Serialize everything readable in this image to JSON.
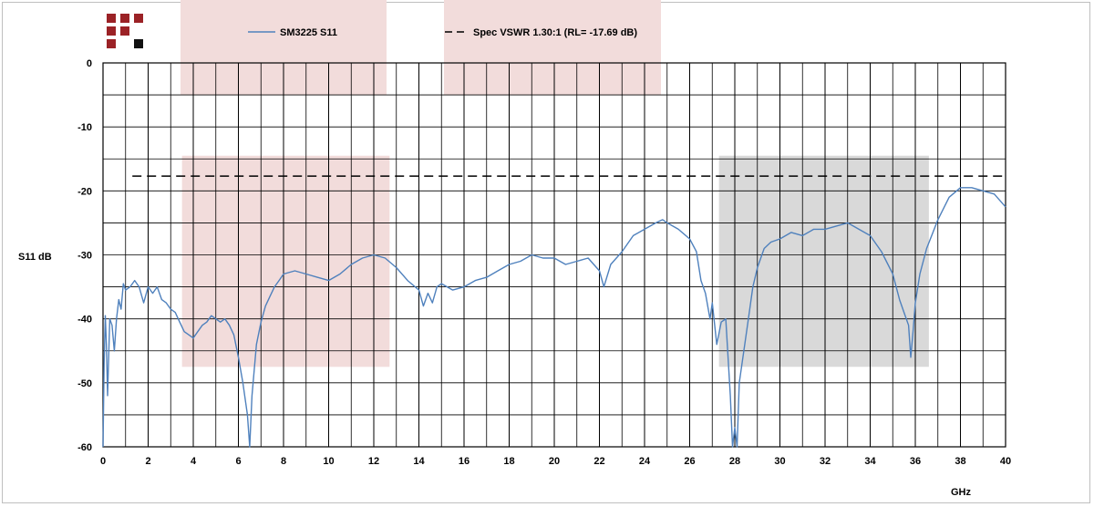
{
  "logo": {
    "name": "brand-logo",
    "colors": {
      "red": "#9b2226",
      "black": "#111111"
    }
  },
  "chart_data": {
    "type": "line",
    "xlabel": "GHz",
    "ylabel": "S11 dB",
    "xlim": [
      0,
      40
    ],
    "ylim": [
      -60,
      0
    ],
    "x_ticks": [
      0,
      2,
      4,
      6,
      8,
      10,
      12,
      14,
      16,
      18,
      20,
      22,
      24,
      26,
      28,
      30,
      32,
      34,
      36,
      38,
      40
    ],
    "y_ticks": [
      0,
      -10,
      -20,
      -30,
      -40,
      -50,
      -60
    ],
    "x_minor_step": 1,
    "y_minor_step": 5,
    "grid": true,
    "legend_position": "top",
    "series": [
      {
        "name": "SM3225 S11",
        "color": "#4f81bd",
        "style": "solid",
        "x": [
          0.0,
          0.05,
          0.1,
          0.15,
          0.2,
          0.3,
          0.4,
          0.5,
          0.6,
          0.7,
          0.8,
          0.9,
          1.0,
          1.2,
          1.4,
          1.6,
          1.8,
          2.0,
          2.2,
          2.4,
          2.6,
          2.8,
          3.0,
          3.2,
          3.4,
          3.6,
          3.8,
          4.0,
          4.2,
          4.4,
          4.6,
          4.8,
          5.0,
          5.2,
          5.4,
          5.6,
          5.8,
          6.0,
          6.2,
          6.4,
          6.5,
          6.6,
          6.8,
          7.0,
          7.2,
          7.4,
          7.6,
          7.8,
          8.0,
          8.5,
          9.0,
          9.5,
          10.0,
          10.5,
          11.0,
          11.5,
          12.0,
          12.5,
          13.0,
          13.5,
          14.0,
          14.2,
          14.4,
          14.6,
          14.8,
          15.0,
          15.5,
          16.0,
          16.5,
          17.0,
          17.5,
          18.0,
          18.5,
          19.0,
          19.5,
          20.0,
          20.5,
          21.0,
          21.5,
          22.0,
          22.2,
          22.5,
          23.0,
          23.5,
          24.0,
          24.5,
          24.8,
          25.0,
          25.5,
          26.0,
          26.3,
          26.5,
          26.7,
          26.9,
          27.0,
          27.2,
          27.4,
          27.6,
          27.8,
          27.9,
          28.0,
          28.1,
          28.2,
          28.4,
          28.6,
          28.8,
          29.0,
          29.3,
          29.6,
          30.0,
          30.5,
          31.0,
          31.5,
          32.0,
          32.5,
          33.0,
          33.5,
          34.0,
          34.5,
          35.0,
          35.3,
          35.5,
          35.7,
          35.8,
          35.9,
          36.0,
          36.2,
          36.5,
          37.0,
          37.5,
          38.0,
          38.5,
          39.0,
          39.5,
          40.0
        ],
        "y": [
          -60.0,
          -47.0,
          -39.5,
          -44.0,
          -52.0,
          -40.0,
          -41.0,
          -45.0,
          -40.0,
          -37.0,
          -38.5,
          -34.5,
          -35.5,
          -35.0,
          -34.0,
          -35.0,
          -37.5,
          -35.0,
          -36.0,
          -35.0,
          -37.0,
          -37.5,
          -38.5,
          -39.0,
          -40.5,
          -42.0,
          -42.5,
          -43.0,
          -42.0,
          -41.0,
          -40.5,
          -39.5,
          -40.0,
          -40.5,
          -40.0,
          -41.0,
          -42.5,
          -46.0,
          -50.0,
          -55.0,
          -60.0,
          -52.0,
          -44.0,
          -40.5,
          -38.0,
          -36.5,
          -35.0,
          -34.0,
          -33.0,
          -32.5,
          -33.0,
          -33.5,
          -34.0,
          -33.0,
          -31.5,
          -30.5,
          -30.0,
          -30.5,
          -32.0,
          -34.0,
          -35.5,
          -38.0,
          -36.0,
          -37.5,
          -35.0,
          -34.5,
          -35.5,
          -35.0,
          -34.0,
          -33.5,
          -32.5,
          -31.5,
          -31.0,
          -30.0,
          -30.5,
          -30.5,
          -31.5,
          -31.0,
          -30.5,
          -32.5,
          -35.0,
          -31.5,
          -29.5,
          -27.0,
          -26.0,
          -25.0,
          -24.5,
          -25.0,
          -26.0,
          -27.5,
          -29.5,
          -34.0,
          -36.0,
          -40.0,
          -37.5,
          -44.0,
          -40.5,
          -40.0,
          -52.0,
          -60.0,
          -57.0,
          -60.0,
          -50.0,
          -45.0,
          -40.0,
          -35.0,
          -32.0,
          -29.0,
          -28.0,
          -27.5,
          -26.5,
          -27.0,
          -26.0,
          -26.0,
          -25.5,
          -25.0,
          -26.0,
          -27.0,
          -29.5,
          -33.0,
          -37.0,
          -39.0,
          -41.0,
          -46.0,
          -42.0,
          -37.5,
          -33.0,
          -29.0,
          -24.5,
          -21.0,
          -19.5,
          -19.5,
          -20.0,
          -20.5,
          -22.5
        ]
      },
      {
        "name": "Spec VSWR 1.30:1 (RL= -17.69 dB)",
        "legend_label": "Spec VSWR 1.30:1 (RL= -17.69 dB)",
        "color": "#000000",
        "style": "dashed",
        "x": [
          1.3,
          40
        ],
        "y": [
          -17.69,
          -17.69
        ]
      }
    ],
    "shaded_regions": [
      {
        "x": [
          3.5,
          12.7
        ],
        "y": [
          -47.5,
          -14.5
        ],
        "color": "#f2dcdb"
      },
      {
        "x": [
          27.3,
          36.6
        ],
        "y": [
          -47.5,
          -14.5
        ],
        "color": "#d9d9d9"
      }
    ],
    "legend_patches": [
      {
        "color": "#f2dcdb"
      },
      {
        "color": "#f2dcdb"
      }
    ]
  }
}
